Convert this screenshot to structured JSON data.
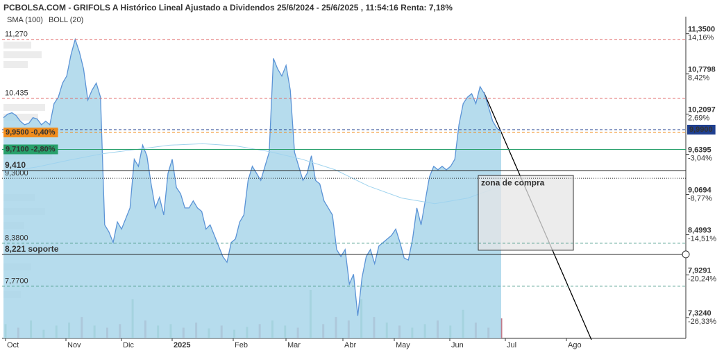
{
  "chart_data": {
    "type": "area",
    "title": "PCBOLSA.COM - GRIFOLS A Histórico Lineal Ajustado a Dividendos 25/6/2024 - 25/6/2025 , 11:54:16 Renta: 7,18%",
    "legend": [
      {
        "name": "SMA (100)",
        "color": "#9fd3ee"
      },
      {
        "name": "BOLL (20)",
        "color": "#c8c8c8"
      }
    ],
    "series": [
      {
        "name": "GRIFOLS A",
        "color": "#5b93d6",
        "fill": "#a9d6ea",
        "values": [
          10.16,
          10.21,
          10.23,
          10.19,
          10.11,
          10.06,
          10.08,
          10.16,
          10.14,
          10.06,
          10.11,
          10.06,
          10.36,
          10.45,
          10.65,
          10.75,
          11.05,
          11.27,
          11.09,
          10.85,
          10.41,
          10.55,
          10.65,
          10.45,
          8.64,
          8.54,
          8.39,
          8.68,
          8.58,
          8.73,
          8.88,
          9.57,
          9.47,
          9.77,
          9.62,
          9.22,
          8.88,
          9.03,
          8.78,
          9.37,
          9.57,
          9.17,
          9.08,
          8.88,
          8.88,
          8.98,
          8.88,
          8.83,
          8.58,
          8.64,
          8.49,
          8.34,
          8.19,
          8.11,
          8.39,
          8.44,
          8.68,
          8.78,
          9.27,
          9.47,
          9.37,
          9.27,
          9.47,
          9.67,
          11.0,
          10.85,
          10.75,
          10.9,
          10.55,
          9.67,
          9.47,
          9.27,
          9.37,
          9.62,
          9.27,
          9.22,
          8.98,
          8.88,
          8.78,
          8.29,
          8.19,
          8.29,
          7.8,
          7.94,
          7.35,
          7.89,
          8.19,
          8.29,
          8.09,
          8.34,
          8.39,
          8.44,
          8.49,
          8.58,
          8.39,
          8.17,
          8.14,
          8.44,
          8.88,
          8.64,
          8.98,
          9.32,
          9.47,
          9.42,
          9.47,
          9.42,
          9.47,
          9.57,
          10.06,
          10.36,
          10.45,
          10.5,
          10.36,
          10.6,
          10.5,
          10.31,
          10.11,
          10.01,
          9.96
        ]
      },
      {
        "name": "SMA (100)",
        "color": "#9fd3ee",
        "values": [
          9.39,
          9.46,
          9.56,
          9.65,
          9.71,
          9.77,
          9.79,
          9.76,
          9.68,
          9.57,
          9.42,
          9.19,
          9.02,
          8.94,
          9.02,
          9.19
        ]
      }
    ],
    "volume": [
      20,
      15,
      25,
      12,
      18,
      22,
      30,
      18,
      15,
      20,
      55,
      25,
      18,
      20,
      15,
      22,
      14,
      18,
      12,
      16,
      20,
      25,
      18,
      15,
      68,
      20,
      30,
      25,
      55,
      30,
      22,
      18,
      15,
      20,
      25,
      18,
      40,
      22,
      15,
      28
    ],
    "volume_colors": [
      "#8fbf9f",
      "#c07a88"
    ],
    "ylim": [
      7.03,
      11.75
    ],
    "yticks": [
      {
        "value": 11.35,
        "label": "11,3500"
      },
      {
        "value": 10.7798,
        "label": "10,7798"
      },
      {
        "value": 10.2097,
        "label": "10,2097"
      },
      {
        "value": 9.6395,
        "label": "9,6395"
      },
      {
        "value": 9.0694,
        "label": "9,0694"
      },
      {
        "value": 8.4993,
        "label": "8,4993"
      },
      {
        "value": 7.9291,
        "label": "7,9291"
      },
      {
        "value": 7.324,
        "label": "7,3240"
      }
    ],
    "ytick_changes": [
      {
        "value": 14.16,
        "label": "14,16%"
      },
      {
        "value": 8.42,
        "label": "8,42%"
      },
      {
        "value": 2.69,
        "label": "2,69%"
      },
      {
        "value": -3.04,
        "label": "-3,04%"
      },
      {
        "value": -8.77,
        "label": "-8,77%"
      },
      {
        "value": -14.51,
        "label": "-14,51%"
      },
      {
        "value": -20.24,
        "label": "-20,24%"
      },
      {
        "value": -26.33,
        "label": "-26,33%"
      }
    ],
    "levels": [
      {
        "value": 11.27,
        "label": "11,270",
        "color": "#e06666",
        "style": "dashed"
      },
      {
        "value": 10.435,
        "label": "10.435",
        "color": "#e06666",
        "style": "dashed"
      },
      {
        "value": 9.99,
        "label": "9,9900",
        "color": "#1f3f8f",
        "style": "dashed",
        "box": "right"
      },
      {
        "value": 9.95,
        "label": "9,9500 -0,40%",
        "color": "#f08c1c",
        "style": "dashed",
        "box": "left"
      },
      {
        "value": 9.71,
        "label": "9,7100 -2,80%",
        "color": "#27a06b",
        "style": "solid",
        "box": "left"
      },
      {
        "value": 9.41,
        "label": "9,410",
        "color": "#222222",
        "style": "solid",
        "bold": true
      },
      {
        "value": 9.3,
        "label": "9,3000",
        "color": "#222222",
        "style": "dotted"
      },
      {
        "value": 8.38,
        "label": "8,3800",
        "color": "#4a9a8a",
        "style": "dashed"
      },
      {
        "value": 8.221,
        "label": "8,221  soporte",
        "color": "#222222",
        "style": "solid",
        "bold": true
      },
      {
        "value": 7.77,
        "label": "7,7700",
        "color": "#4a9a8a",
        "style": "dashed"
      }
    ],
    "zone": {
      "label": "zona de compra",
      "top": 9.34,
      "bottom": 8.28
    },
    "x_labels": [
      "Oct",
      "Nov",
      "Dic",
      "2025",
      "Feb",
      "Mar",
      "Abr",
      "May",
      "Jun",
      "Jul",
      "Ago"
    ]
  }
}
